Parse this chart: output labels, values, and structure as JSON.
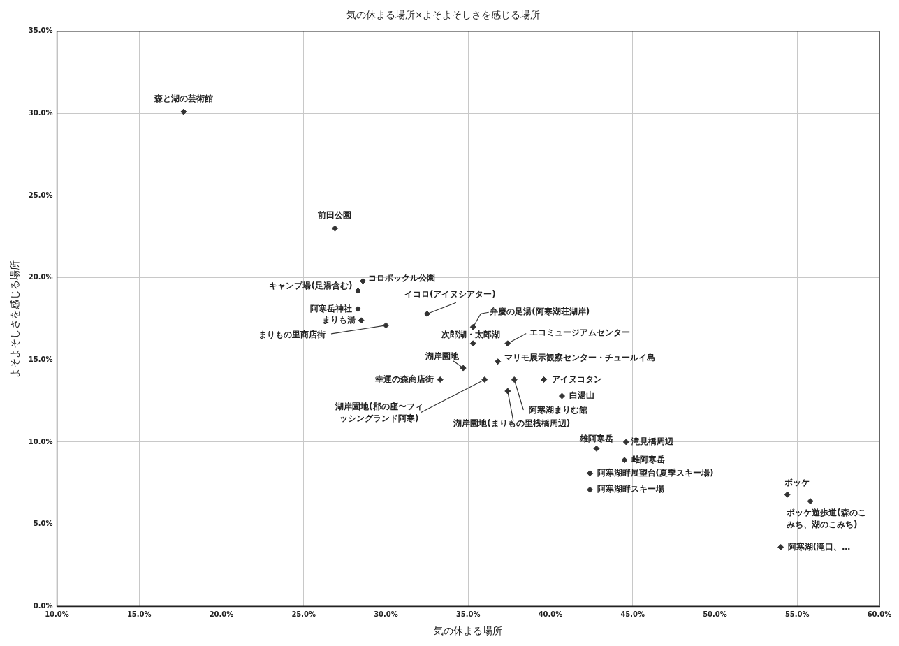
{
  "chart_data": {
    "type": "scatter",
    "title": "気の休まる場所×よそよそしさを感じる場所",
    "xlabel": "気の休まる場所",
    "ylabel": "よそよそしさを感じる場所",
    "xlim": [
      10,
      60
    ],
    "ylim": [
      0,
      35
    ],
    "xticks": [
      {
        "value": 10,
        "label": "10.0%"
      },
      {
        "value": 15,
        "label": "15.0%"
      },
      {
        "value": 20,
        "label": "20.0%"
      },
      {
        "value": 25,
        "label": "25.0%"
      },
      {
        "value": 30,
        "label": "30.0%"
      },
      {
        "value": 35,
        "label": "35.0%"
      },
      {
        "value": 40,
        "label": "40.0%"
      },
      {
        "value": 45,
        "label": "45.0%"
      },
      {
        "value": 50,
        "label": "50.0%"
      },
      {
        "value": 55,
        "label": "55.0%"
      },
      {
        "value": 60,
        "label": "60.0%"
      }
    ],
    "yticks": [
      {
        "value": 0,
        "label": "0.0%"
      },
      {
        "value": 5,
        "label": "5.0%"
      },
      {
        "value": 10,
        "label": "10.0%"
      },
      {
        "value": 15,
        "label": "15.0%"
      },
      {
        "value": 20,
        "label": "20.0%"
      },
      {
        "value": 25,
        "label": "25.0%"
      },
      {
        "value": 30,
        "label": "30.0%"
      },
      {
        "value": 35,
        "label": "35.0%"
      }
    ],
    "grid": true,
    "legend": false,
    "marker": "diamond",
    "series": [
      {
        "name": "森と湖の芸術館",
        "color": "#333333",
        "x": [
          17.7
        ],
        "values": [
          30.1
        ]
      },
      {
        "name": "前田公園",
        "color": "#333333",
        "x": [
          26.9
        ],
        "values": [
          23.0
        ]
      },
      {
        "name": "コロポックル公園",
        "color": "#333333",
        "x": [
          28.6
        ],
        "values": [
          19.8
        ]
      },
      {
        "name": "キャンプ場(足湯含む)",
        "color": "#333333",
        "x": [
          28.3
        ],
        "values": [
          19.2
        ]
      },
      {
        "name": "阿寒岳神社",
        "color": "#333333",
        "x": [
          28.3
        ],
        "values": [
          18.1
        ]
      },
      {
        "name": "まりも湯",
        "color": "#333333",
        "x": [
          28.5
        ],
        "values": [
          17.4
        ]
      },
      {
        "name": "まりもの里商店街",
        "color": "#333333",
        "x": [
          30.0
        ],
        "values": [
          17.1
        ]
      },
      {
        "name": "イコロ(アイヌシアター)",
        "color": "#333333",
        "x": [
          32.5
        ],
        "values": [
          17.8
        ]
      },
      {
        "name": "弁慶の足湯(阿寒湖荘湖岸)",
        "color": "#333333",
        "x": [
          35.3
        ],
        "values": [
          17.0
        ]
      },
      {
        "name": "次郎湖・太郎湖",
        "color": "#333333",
        "x": [
          35.3
        ],
        "values": [
          16.0
        ]
      },
      {
        "name": "エコミュージアムセンター",
        "color": "#333333",
        "x": [
          37.4
        ],
        "values": [
          16.0
        ]
      },
      {
        "name": "湖岸園地",
        "color": "#333333",
        "x": [
          34.7
        ],
        "values": [
          14.5
        ]
      },
      {
        "name": "マリモ展示観察センター・チュールイ島",
        "color": "#333333",
        "x": [
          36.8
        ],
        "values": [
          14.9
        ]
      },
      {
        "name": "幸運の森商店街",
        "color": "#333333",
        "x": [
          33.3
        ],
        "values": [
          13.8
        ]
      },
      {
        "name": "湖岸園地(郡の座〜フィッシングランド阿寒)",
        "color": "#333333",
        "x": [
          36.0
        ],
        "values": [
          13.8
        ]
      },
      {
        "name": "阿寒湖まりむ館",
        "color": "#333333",
        "x": [
          37.8
        ],
        "values": [
          13.8
        ]
      },
      {
        "name": "湖岸園地(まりもの里桟橋周辺)",
        "color": "#333333",
        "x": [
          37.4
        ],
        "values": [
          13.1
        ]
      },
      {
        "name": "アイヌコタン",
        "color": "#333333",
        "x": [
          39.6
        ],
        "values": [
          13.8
        ]
      },
      {
        "name": "白湯山",
        "color": "#333333",
        "x": [
          40.7
        ],
        "values": [
          12.8
        ]
      },
      {
        "name": "雄阿寒岳",
        "color": "#333333",
        "x": [
          42.8
        ],
        "values": [
          9.6
        ]
      },
      {
        "name": "滝見橋周辺",
        "color": "#333333",
        "x": [
          44.6
        ],
        "values": [
          10.0
        ]
      },
      {
        "name": "雌阿寒岳",
        "color": "#333333",
        "x": [
          44.5
        ],
        "values": [
          8.9
        ]
      },
      {
        "name": "阿寒湖畔展望台(夏季スキー場)",
        "color": "#333333",
        "x": [
          42.4
        ],
        "values": [
          8.1
        ]
      },
      {
        "name": "阿寒湖畔スキー場",
        "color": "#333333",
        "x": [
          42.4
        ],
        "values": [
          7.1
        ]
      },
      {
        "name": "ボッケ",
        "color": "#333333",
        "x": [
          54.4
        ],
        "values": [
          6.8
        ]
      },
      {
        "name": "ボッケ遊歩道(森のこみち、湖のこみち)",
        "color": "#333333",
        "x": [
          55.8
        ],
        "values": [
          6.4
        ]
      },
      {
        "name": "阿寒湖(滝口、…",
        "color": "#333333",
        "x": [
          54.0
        ],
        "values": [
          3.6
        ]
      }
    ]
  }
}
